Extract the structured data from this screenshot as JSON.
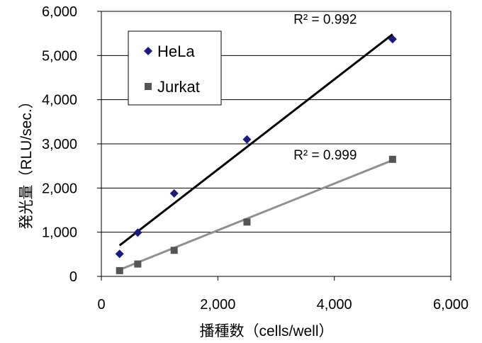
{
  "chart_data": {
    "type": "scatter",
    "xlabel": "播種数（cells/well）",
    "ylabel": "発光量（RLU/sec.）",
    "xlim": [
      0,
      6000
    ],
    "ylim": [
      0,
      6000
    ],
    "x_ticks": [
      0,
      2000,
      4000,
      6000
    ],
    "y_ticks": [
      0,
      1000,
      2000,
      3000,
      4000,
      5000,
      6000
    ],
    "x_tick_labels": [
      "0",
      "2,000",
      "4,000",
      "6,000"
    ],
    "y_tick_labels": [
      "0",
      "1,000",
      "2,000",
      "3,000",
      "4,000",
      "5,000",
      "6,000"
    ],
    "grid": "horizontal",
    "legend_position": "top-left",
    "series": [
      {
        "name": "HeLa",
        "marker": "diamond",
        "color": "#1a1a80",
        "trend_color": "#000000",
        "x": [
          313,
          625,
          1250,
          2500,
          5000
        ],
        "y": [
          510,
          990,
          1880,
          3100,
          5370
        ],
        "trendline": {
          "x": [
            313,
            5000
          ],
          "y": [
            700,
            5480
          ]
        },
        "r_squared_label": "R² = 0.992",
        "label_anchor": {
          "x": 3300,
          "y": 5720
        }
      },
      {
        "name": "Jurkat",
        "marker": "square",
        "color": "#555555",
        "trend_color": "#909090",
        "x": [
          313,
          625,
          1250,
          2500,
          5000
        ],
        "y": [
          130,
          280,
          590,
          1230,
          2650
        ],
        "trendline": {
          "x": [
            313,
            5000
          ],
          "y": [
            150,
            2630
          ]
        },
        "r_squared_label": "R² = 0.999",
        "label_anchor": {
          "x": 3300,
          "y": 2650
        }
      }
    ]
  }
}
